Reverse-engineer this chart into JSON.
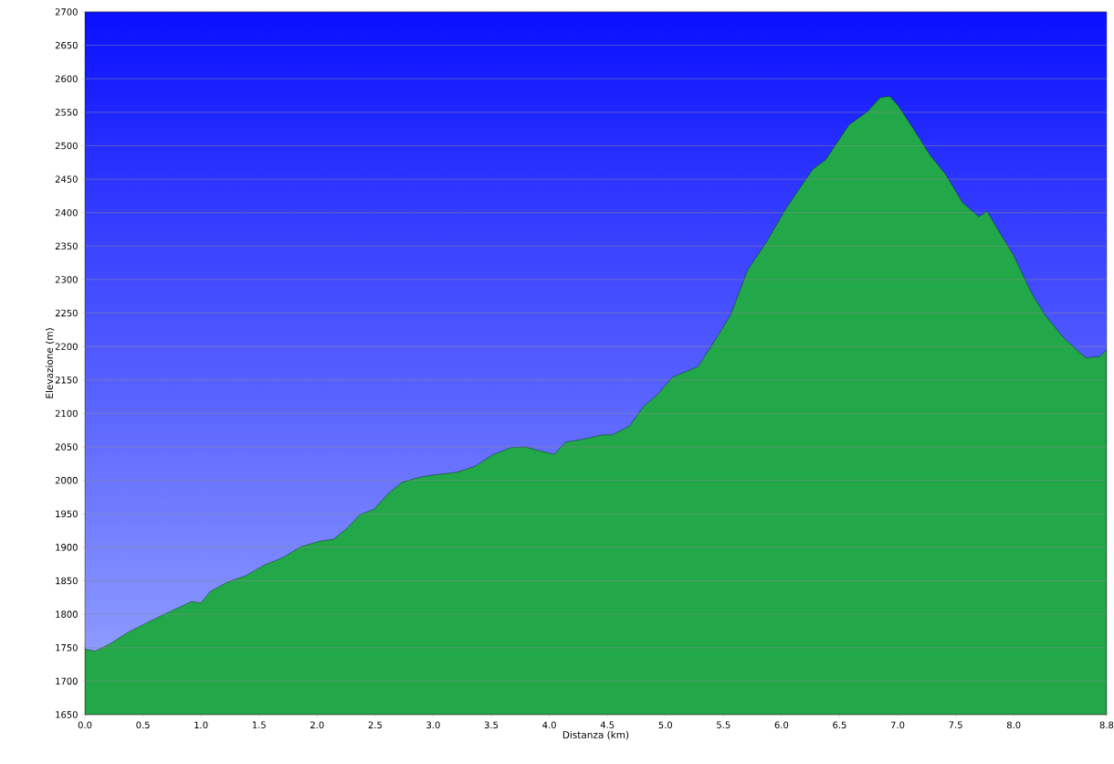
{
  "chart_data": {
    "type": "area",
    "xlabel": "Distanza  (km)",
    "ylabel": "Elevazione (m)",
    "color": "#22a848",
    "grid": "y",
    "xlim": [
      0,
      8.8
    ],
    "ylim": [
      1650,
      2700
    ],
    "xticks": [
      {
        "value": 0,
        "label": "0.0"
      },
      0.5,
      {
        "value": 1,
        "label": "1.0"
      },
      1.5,
      {
        "value": 2,
        "label": "2.0"
      },
      2.5,
      {
        "value": 3,
        "label": "3.0"
      },
      3.5,
      {
        "value": 4,
        "label": "4.0"
      },
      4.5,
      {
        "value": 5,
        "label": "5.0"
      },
      5.5,
      {
        "value": 6,
        "label": "6.0"
      },
      6.5,
      {
        "value": 7,
        "label": "7.0"
      },
      7.5,
      {
        "value": 8,
        "label": "8.0"
      },
      8.8
    ],
    "yticks": [
      1650,
      1700,
      1750,
      1800,
      1850,
      1900,
      1950,
      2000,
      2050,
      2100,
      2150,
      2200,
      2250,
      2300,
      2350,
      2400,
      2450,
      2500,
      2550,
      2600,
      2650,
      2700
    ],
    "x": [
      0.0,
      0.09,
      0.21,
      0.37,
      0.53,
      0.72,
      0.92,
      1.0,
      1.08,
      1.23,
      1.39,
      1.55,
      1.71,
      1.86,
      2.02,
      2.14,
      2.26,
      2.37,
      2.49,
      2.61,
      2.73,
      2.89,
      3.0,
      3.2,
      3.36,
      3.51,
      3.67,
      3.79,
      3.99,
      4.04,
      4.14,
      4.3,
      4.46,
      4.54,
      4.69,
      4.81,
      4.93,
      5.06,
      5.28,
      5.44,
      5.56,
      5.71,
      5.87,
      6.03,
      6.19,
      6.27,
      6.38,
      6.46,
      6.58,
      6.74,
      6.85,
      6.93,
      7.0,
      7.13,
      7.28,
      7.41,
      7.56,
      7.7,
      7.77,
      7.88,
      8.0,
      8.15,
      8.27,
      8.43,
      8.62,
      8.74,
      8.8
    ],
    "values": [
      1748,
      1745,
      1755,
      1773,
      1787,
      1803,
      1819,
      1817,
      1834,
      1848,
      1858,
      1874,
      1885,
      1901,
      1909,
      1912,
      1929,
      1949,
      1957,
      1980,
      1997,
      2005,
      2008,
      2012,
      2021,
      2038,
      2049,
      2050,
      2041,
      2039,
      2057,
      2062,
      2068,
      2068,
      2081,
      2110,
      2128,
      2154,
      2170,
      2213,
      2247,
      2315,
      2356,
      2404,
      2445,
      2465,
      2479,
      2500,
      2531,
      2551,
      2572,
      2574,
      2561,
      2527,
      2486,
      2458,
      2415,
      2394,
      2402,
      2370,
      2336,
      2281,
      2247,
      2213,
      2183,
      2185,
      2195
    ]
  }
}
